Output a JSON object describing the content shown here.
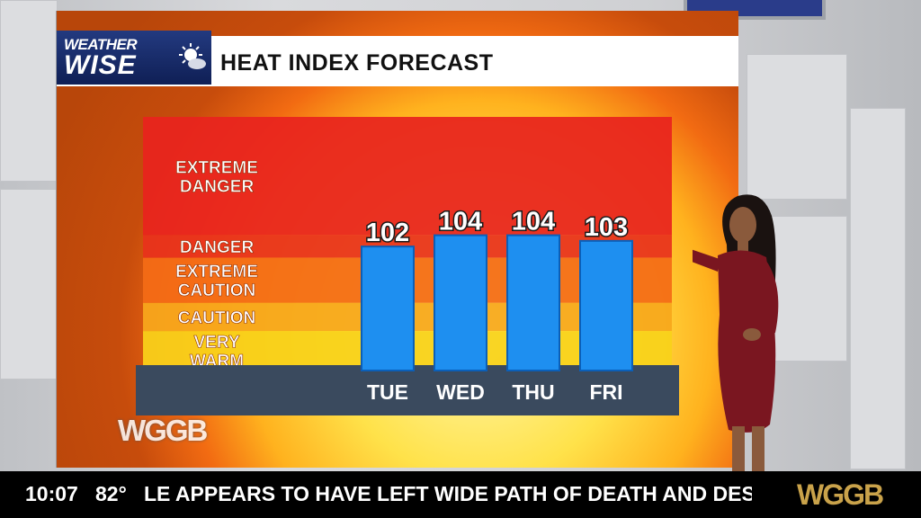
{
  "branding": {
    "logo_line1": "WEATHER",
    "logo_line2": "WISE",
    "station_bug": "WGGB",
    "ticker_logo": "WGGB"
  },
  "header": {
    "title": "HEAT INDEX FORECAST"
  },
  "colors": {
    "bar": "#1e8ff0",
    "bar_edge": "#0b5fb8",
    "axis_band": "#3a4a5e",
    "zone_extreme_danger": "#e8241e",
    "zone_danger": "#e8321c",
    "zone_extreme_caution": "#f46c16",
    "zone_caution": "#f7a81c",
    "zone_very_warm": "#f9d21a"
  },
  "chart_data": {
    "type": "bar",
    "title": "HEAT INDEX FORECAST",
    "categories": [
      "TUE",
      "WED",
      "THU",
      "FRI"
    ],
    "values": [
      102,
      104,
      104,
      103
    ],
    "value_labels": [
      "102",
      "104",
      "104",
      "103"
    ],
    "zones": [
      {
        "label_lines": [
          "EXTREME",
          "DANGER"
        ],
        "color_key": "zone_extreme_danger"
      },
      {
        "label_lines": [
          "DANGER"
        ],
        "color_key": "zone_danger"
      },
      {
        "label_lines": [
          "EXTREME",
          "CAUTION"
        ],
        "color_key": "zone_extreme_caution"
      },
      {
        "label_lines": [
          "CAUTION"
        ],
        "color_key": "zone_caution"
      },
      {
        "label_lines": [
          "VERY",
          "WARM"
        ],
        "color_key": "zone_very_warm"
      }
    ],
    "zone_bounds": [
      125,
      104,
      100,
      92,
      87,
      80
    ],
    "ylim": [
      80,
      125
    ],
    "grid": false,
    "legend": "none"
  },
  "ticker": {
    "time": "10:07",
    "temp": "82°",
    "headline": "LE APPEARS TO HAVE LEFT WIDE PATH OF DEATH AND DESTRU"
  }
}
